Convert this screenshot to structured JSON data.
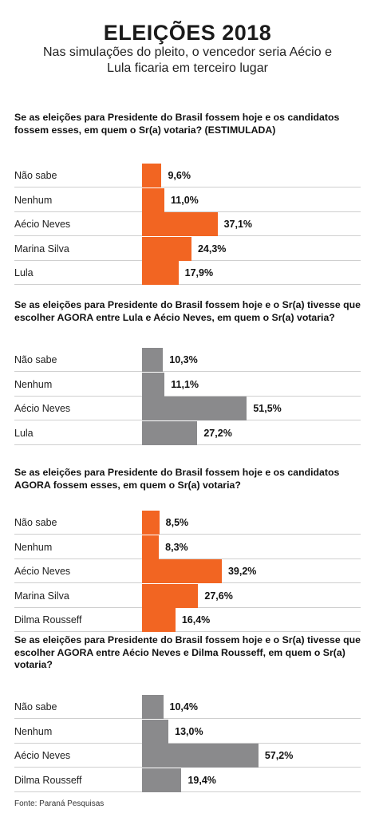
{
  "header": {
    "title": "ELEIÇÕES 2018",
    "subtitle": "Nas simulações do pleito, o vencedor seria Aécio e Lula ficaria em terceiro lugar"
  },
  "source": "Fonte: Paraná Pesquisas",
  "colors": {
    "orange": "#f26522",
    "gray": "#8a8a8c",
    "separator": "#cfcfcf"
  },
  "chart_data": [
    {
      "type": "bar",
      "orientation": "horizontal-centered",
      "title": "Se as eleições para Presidente do Brasil fossem hoje e os candidatos fossem esses, em quem o Sr(a) votaria? (ESTIMULADA)",
      "color": "#f26522",
      "categories": [
        "Não sabe",
        "Nenhum",
        "Aécio Neves",
        "Marina Silva",
        "Lula"
      ],
      "values": [
        9.6,
        11.0,
        37.1,
        24.3,
        17.9
      ],
      "labels": [
        "9,6%",
        "11,0%",
        "37,1%",
        "24,3%",
        "17,9%"
      ]
    },
    {
      "type": "bar",
      "orientation": "horizontal-centered",
      "title": "Se as eleições para Presidente do Brasil fossem hoje e o Sr(a) tivesse que escolher AGORA entre Lula e Aécio Neves, em quem o Sr(a) votaria?",
      "color": "#8a8a8c",
      "categories": [
        "Não sabe",
        "Nenhum",
        "Aécio Neves",
        "Lula"
      ],
      "values": [
        10.3,
        11.1,
        51.5,
        27.2
      ],
      "labels": [
        "10,3%",
        "11,1%",
        "51,5%",
        "27,2%"
      ]
    },
    {
      "type": "bar",
      "orientation": "horizontal-centered",
      "title": "Se as eleições para Presidente do Brasil fossem hoje e os candidatos AGORA fossem esses, em quem o Sr(a) votaria?",
      "color": "#f26522",
      "categories": [
        "Não sabe",
        "Nenhum",
        "Aécio Neves",
        "Marina Silva",
        "Dilma Rousseff"
      ],
      "values": [
        8.5,
        8.3,
        39.2,
        27.6,
        16.4
      ],
      "labels": [
        "8,5%",
        "8,3%",
        "39,2%",
        "27,6%",
        "16,4%"
      ]
    },
    {
      "type": "bar",
      "orientation": "horizontal-centered",
      "title": "Se as eleições para Presidente do Brasil fossem hoje e o Sr(a) tivesse que escolher AGORA entre Aécio Neves e Dilma Rousseff, em quem o Sr(a) votaria?",
      "color": "#8a8a8c",
      "categories": [
        "Não sabe",
        "Nenhum",
        "Aécio Neves",
        "Dilma Rousseff"
      ],
      "values": [
        10.4,
        13.0,
        57.2,
        19.4
      ],
      "labels": [
        "10,4%",
        "13,0%",
        "57,2%",
        "19,4%"
      ]
    }
  ]
}
